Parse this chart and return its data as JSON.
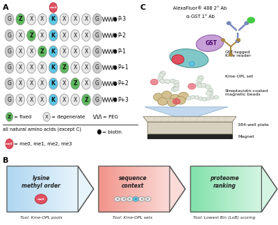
{
  "panel_A_label": "A",
  "panel_B_label": "B",
  "panel_C_label": "C",
  "rows": [
    "P-3",
    "P-2",
    "P-1",
    "P+1",
    "P+2",
    "P+3"
  ],
  "row_sequences": [
    [
      "G",
      "Z",
      "X",
      "X",
      "K",
      "X",
      "X",
      "X",
      "G"
    ],
    [
      "G",
      "X",
      "Z",
      "X",
      "K",
      "X",
      "X",
      "X",
      "G"
    ],
    [
      "G",
      "X",
      "X",
      "Z",
      "K",
      "X",
      "X",
      "X",
      "G"
    ],
    [
      "G",
      "X",
      "X",
      "X",
      "K",
      "Z",
      "X",
      "X",
      "G"
    ],
    [
      "G",
      "X",
      "X",
      "X",
      "K",
      "X",
      "Z",
      "X",
      "G"
    ],
    [
      "G",
      "X",
      "X",
      "X",
      "K",
      "X",
      "X",
      "Z",
      "G"
    ]
  ],
  "color_G": "#cccccc",
  "color_X": "#e8e8e8",
  "color_Z": "#5cb85c",
  "color_K": "#5bc8e8",
  "color_meX": "#e05060",
  "background_color": "#ffffff",
  "panel_B_boxes": [
    {
      "label": "lysine\nmethyl order",
      "tool": "Tool: Kme-OPL pools",
      "bg_l": "#aed6f1",
      "bg_r": "#e8f4fb",
      "has_mex": true
    },
    {
      "label": "sequence\ncontext",
      "tool": "Tool: Kme-OPL sets",
      "bg_l": "#f1948a",
      "bg_r": "#fadbd8",
      "has_beads": true
    },
    {
      "label": "proteome\nranking",
      "tool": "Tool: Lowest Bin (LoB) scoring",
      "bg_l": "#82e0aa",
      "bg_r": "#d5f5e3",
      "has_nothing": true
    }
  ]
}
